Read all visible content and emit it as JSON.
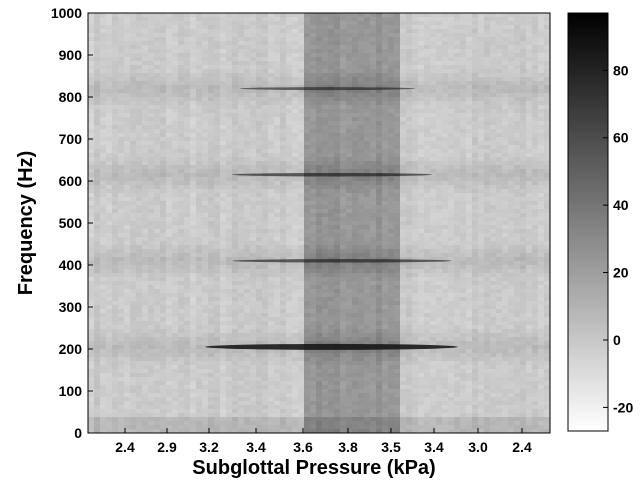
{
  "chart_data": {
    "type": "heatmap",
    "title": "",
    "xlabel": "Subglottal Pressure (kPa)",
    "ylabel": "Frequency (Hz)",
    "x_tick_labels": [
      "2.4",
      "2.9",
      "3.2",
      "3.4",
      "3.6",
      "3.8",
      "3.5",
      "3.4",
      "3.0",
      "2.4"
    ],
    "y_ticks": [
      0,
      100,
      200,
      300,
      400,
      500,
      600,
      700,
      800,
      900,
      1000
    ],
    "ylim": [
      0,
      1000
    ],
    "colorbar": {
      "range": [
        -27,
        97
      ],
      "ticks": [
        -20,
        0,
        20,
        40,
        60,
        80
      ],
      "colormap": "gray-reversed"
    },
    "highlight_region": {
      "x_start_tick": "3.6",
      "x_end_tick": "3.5",
      "description": "darker band"
    },
    "harmonic_lines_hz": [
      205,
      410,
      615,
      820
    ],
    "grid": false
  }
}
